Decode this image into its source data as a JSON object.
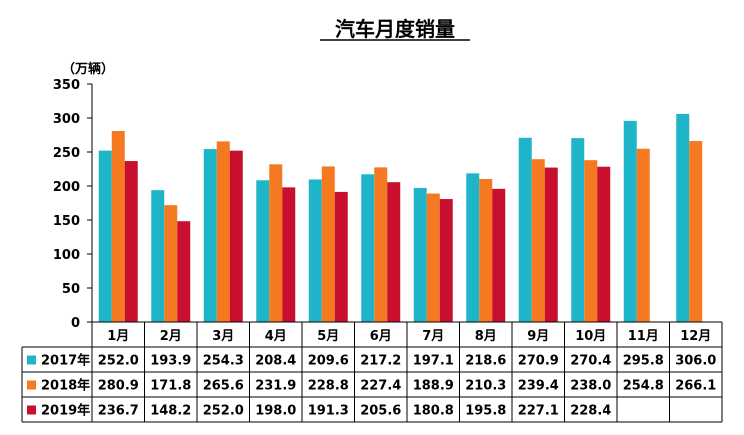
{
  "chart_data": {
    "type": "bar",
    "title": "汽车月度销量",
    "unit_label": "（万辆）",
    "categories": [
      "1月",
      "2月",
      "3月",
      "4月",
      "5月",
      "6月",
      "7月",
      "8月",
      "9月",
      "10月",
      "11月",
      "12月"
    ],
    "yticks": [
      "0",
      "50",
      "100",
      "150",
      "200",
      "250",
      "300",
      "350"
    ],
    "ylim": [
      0,
      350
    ],
    "grid": false,
    "legend": "table-left",
    "series": [
      {
        "name": "2017年",
        "color": "#1fb5c9",
        "values": [
          252.0,
          193.9,
          254.3,
          208.4,
          209.6,
          217.2,
          197.1,
          218.6,
          270.9,
          270.4,
          295.8,
          306.0
        ],
        "labels": [
          "252.0",
          "193.9",
          "254.3",
          "208.4",
          "209.6",
          "217.2",
          "197.1",
          "218.6",
          "270.9",
          "270.4",
          "295.8",
          "306.0"
        ]
      },
      {
        "name": "2018年",
        "color": "#f47920",
        "values": [
          280.9,
          171.8,
          265.6,
          231.9,
          228.8,
          227.4,
          188.9,
          210.3,
          239.4,
          238.0,
          254.8,
          266.1
        ],
        "labels": [
          "280.9",
          "171.8",
          "265.6",
          "231.9",
          "228.8",
          "227.4",
          "188.9",
          "210.3",
          "239.4",
          "238.0",
          "254.8",
          "266.1"
        ]
      },
      {
        "name": "2019年",
        "color": "#c8102e",
        "values": [
          236.7,
          148.2,
          252.0,
          198.0,
          191.3,
          205.6,
          180.8,
          195.8,
          227.1,
          228.4,
          null,
          null
        ],
        "labels": [
          "236.7",
          "148.2",
          "252.0",
          "198.0",
          "191.3",
          "205.6",
          "180.8",
          "195.8",
          "227.1",
          "228.4",
          "",
          ""
        ]
      }
    ]
  }
}
